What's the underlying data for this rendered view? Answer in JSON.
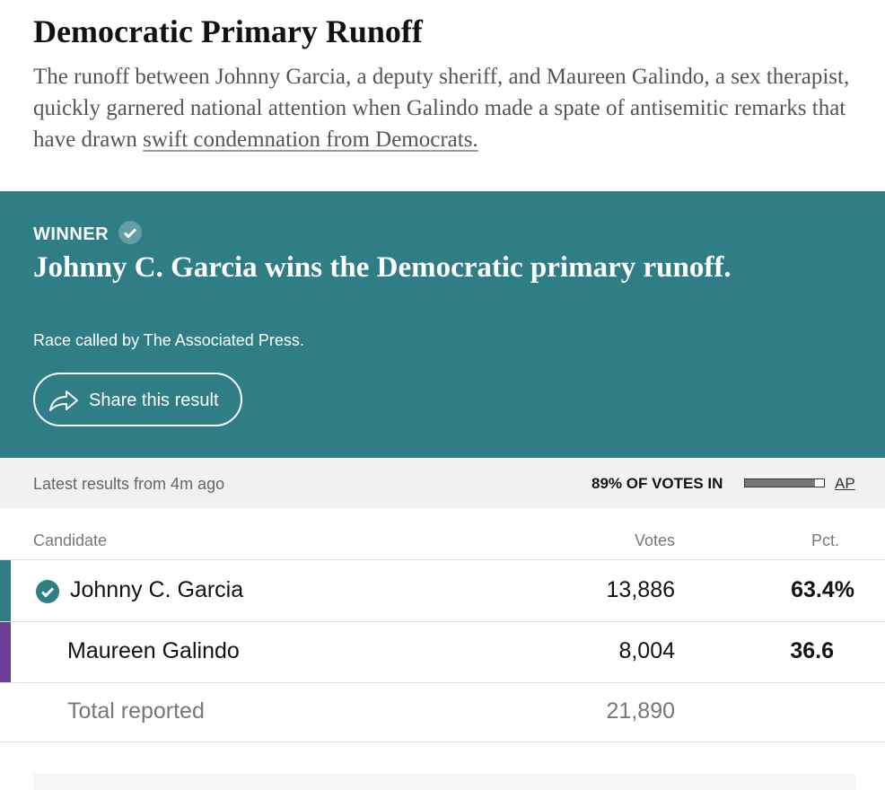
{
  "header": {
    "title": "Democratic Primary Runoff",
    "intro": "The runoff between Johnny Garcia, a deputy sheriff, and Maureen Galindo, a sex therapist, quickly garnered national attention when Galindo made a spate of antisemitic remarks that have drawn ",
    "intro_link": "swift condemnation from Democrats."
  },
  "winner_box": {
    "badge": "WINNER",
    "headline": "Johnny C. Garcia wins the Democratic primary runoff.",
    "call": "Race called by The Associated Press.",
    "share_button": "Share this result"
  },
  "status_bar": {
    "updated": "Latest results from 4m ago",
    "reporting": {
      "value": 89,
      "label": "89% OF VOTES IN"
    },
    "source": "AP"
  },
  "table": {
    "columns": [
      "Candidate",
      "Votes",
      "Pct."
    ],
    "rows": [
      [
        "Johnny C. Garcia",
        "13,886",
        "63.4%"
      ],
      [
        "Maureen Galindo",
        "8,004",
        "36.6"
      ],
      [
        "Total reported",
        "21,890"
      ]
    ]
  }
}
